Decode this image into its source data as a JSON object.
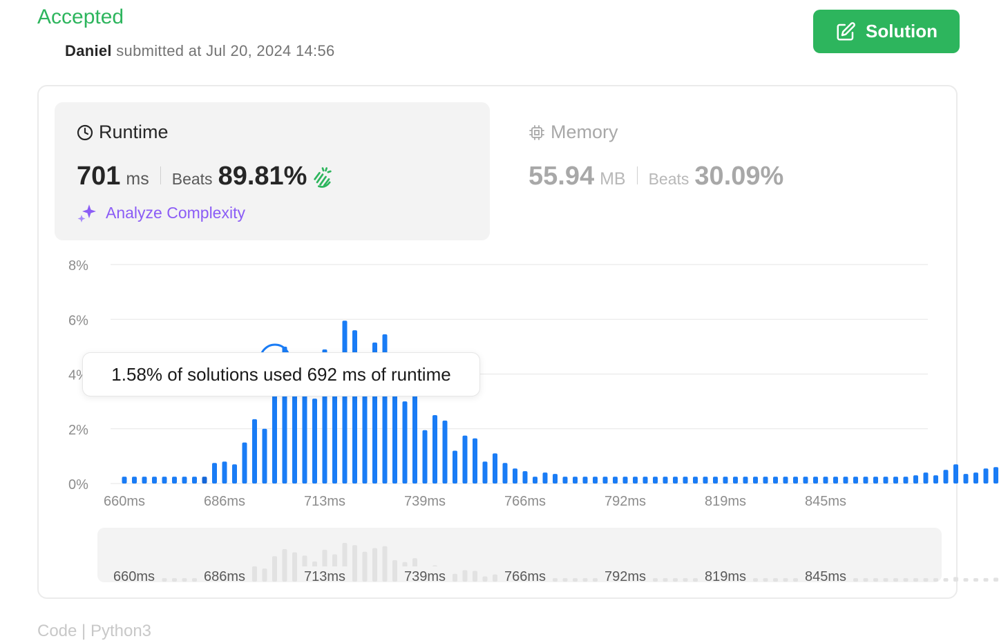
{
  "header": {
    "status": "Accepted",
    "user": "Daniel",
    "submitted_text": "submitted at Jul 20, 2024 14:56",
    "solution_button": "Solution"
  },
  "runtime": {
    "title": "Runtime",
    "value": "701",
    "unit": "ms",
    "beats_label": "Beats",
    "beats_value": "89.81%",
    "analyze_label": "Analyze Complexity"
  },
  "memory": {
    "title": "Memory",
    "value": "55.94",
    "unit": "MB",
    "beats_label": "Beats",
    "beats_value": "30.09%"
  },
  "tooltip": "1.58% of solutions used 692 ms of runtime",
  "bottom_tabs": "Code | Python3",
  "colors": {
    "accent_green": "#2db55d",
    "bar_blue": "#1a7cf5",
    "analyze_purple": "#8b5cf6"
  },
  "chart_data": {
    "type": "bar",
    "title": "",
    "xlabel": "",
    "ylabel": "",
    "y_ticks": [
      "8%",
      "6%",
      "4%",
      "2%",
      "0%"
    ],
    "x_ticks": [
      "660ms",
      "686ms",
      "713ms",
      "739ms",
      "766ms",
      "792ms",
      "819ms",
      "845ms"
    ],
    "ylim": [
      0,
      8
    ],
    "highlight_index": 8,
    "values": [
      0.25,
      0.25,
      0.25,
      0.25,
      0.25,
      0.25,
      0.25,
      0.25,
      0.25,
      0.75,
      0.8,
      0.7,
      1.5,
      2.35,
      2.0,
      3.9,
      5.0,
      4.5,
      4.0,
      3.1,
      4.9,
      4.2,
      5.95,
      5.6,
      4.6,
      5.15,
      5.45,
      3.3,
      3.0,
      3.6,
      1.95,
      2.5,
      2.3,
      1.2,
      1.75,
      1.65,
      0.8,
      1.1,
      0.75,
      0.55,
      0.45,
      0.25,
      0.4,
      0.35,
      0.25,
      0.25,
      0.25,
      0.25,
      0.25,
      0.25,
      0.25,
      0.25,
      0.25,
      0.25,
      0.25,
      0.25,
      0.25,
      0.25,
      0.25,
      0.25,
      0.25,
      0.25,
      0.25,
      0.25,
      0.25,
      0.25,
      0.25,
      0.25,
      0.25,
      0.25,
      0.25,
      0.25,
      0.25,
      0.25,
      0.25,
      0.25,
      0.25,
      0.25,
      0.25,
      0.3,
      0.4,
      0.3,
      0.5,
      0.7,
      0.35,
      0.4,
      0.55,
      0.6,
      0.65,
      0.55,
      0.35,
      0.55,
      0.45,
      0.55,
      0.5,
      0.4
    ]
  }
}
